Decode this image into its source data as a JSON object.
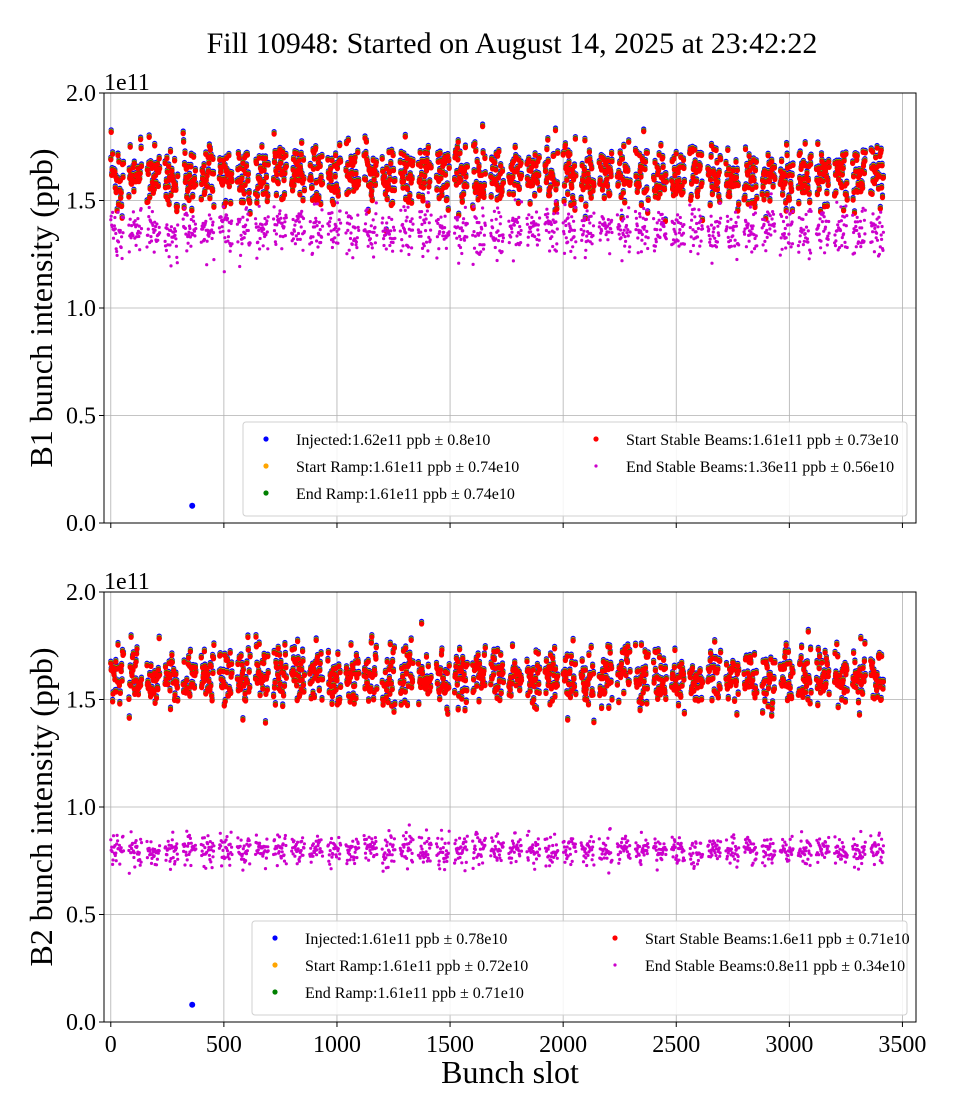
{
  "chart_data": {
    "title": "Fill 10948: Started on August 14, 2025 at 23:42:22",
    "type": "scatter",
    "xlabel": "Bunch slot",
    "xlim": [
      -30,
      3560
    ],
    "x_ticks": [
      0,
      500,
      1000,
      1500,
      2000,
      2500,
      3000,
      3500
    ],
    "bunch_slot_range": [
      0,
      3420
    ],
    "grid": true,
    "colors": {
      "injected": "#0000ff",
      "start_ramp": "#ffa500",
      "end_ramp": "#008000",
      "start_stable": "#ff0000",
      "end_stable": "#cc00cc"
    },
    "panels": [
      {
        "ylabel": "B1 bunch intensity (ppb)",
        "y_offset_label": "1e11",
        "ylim": [
          0,
          2.0
        ],
        "y_ticks": [
          "0.0",
          "0.5",
          "1.0",
          "1.5",
          "2.0"
        ],
        "legend_position": "lower-right",
        "series": [
          {
            "key": "injected",
            "name": "Injected:1.62e11 ppb ± 0.8e10",
            "mean": 1.62,
            "std": 0.08
          },
          {
            "key": "start_ramp",
            "name": "Start Ramp:1.61e11 ppb ± 0.74e10",
            "mean": 1.61,
            "std": 0.074
          },
          {
            "key": "end_ramp",
            "name": "End Ramp:1.61e11 ppb ± 0.74e10",
            "mean": 1.61,
            "std": 0.074
          },
          {
            "key": "start_stable",
            "name": "Start Stable Beams:1.61e11 ppb ± 0.73e10",
            "mean": 1.61,
            "std": 0.073
          },
          {
            "key": "end_stable",
            "name": "End Stable Beams:1.36e11 ppb ± 0.56e10",
            "mean": 1.36,
            "std": 0.056
          }
        ],
        "outliers": [
          {
            "series": "injected",
            "x": 360,
            "y": 0.08
          }
        ]
      },
      {
        "ylabel": "B2 bunch intensity (ppb)",
        "y_offset_label": "1e11",
        "ylim": [
          0,
          2.0
        ],
        "y_ticks": [
          "0.0",
          "0.5",
          "1.0",
          "1.5",
          "2.0"
        ],
        "legend_position": "lower-right",
        "series": [
          {
            "key": "injected",
            "name": "Injected:1.61e11 ppb ± 0.78e10",
            "mean": 1.61,
            "std": 0.078
          },
          {
            "key": "start_ramp",
            "name": "Start Ramp:1.61e11 ppb ± 0.72e10",
            "mean": 1.61,
            "std": 0.072
          },
          {
            "key": "end_ramp",
            "name": "End Ramp:1.61e11 ppb ± 0.71e10",
            "mean": 1.61,
            "std": 0.071
          },
          {
            "key": "start_stable",
            "name": "Start Stable Beams:1.6e11 ppb ± 0.71e10",
            "mean": 1.6,
            "std": 0.071
          },
          {
            "key": "end_stable",
            "name": "End Stable Beams:0.8e11 ppb ± 0.34e10",
            "mean": 0.8,
            "std": 0.034
          }
        ],
        "outliers": [
          {
            "series": "injected",
            "x": 360,
            "y": 0.08
          }
        ]
      }
    ]
  }
}
